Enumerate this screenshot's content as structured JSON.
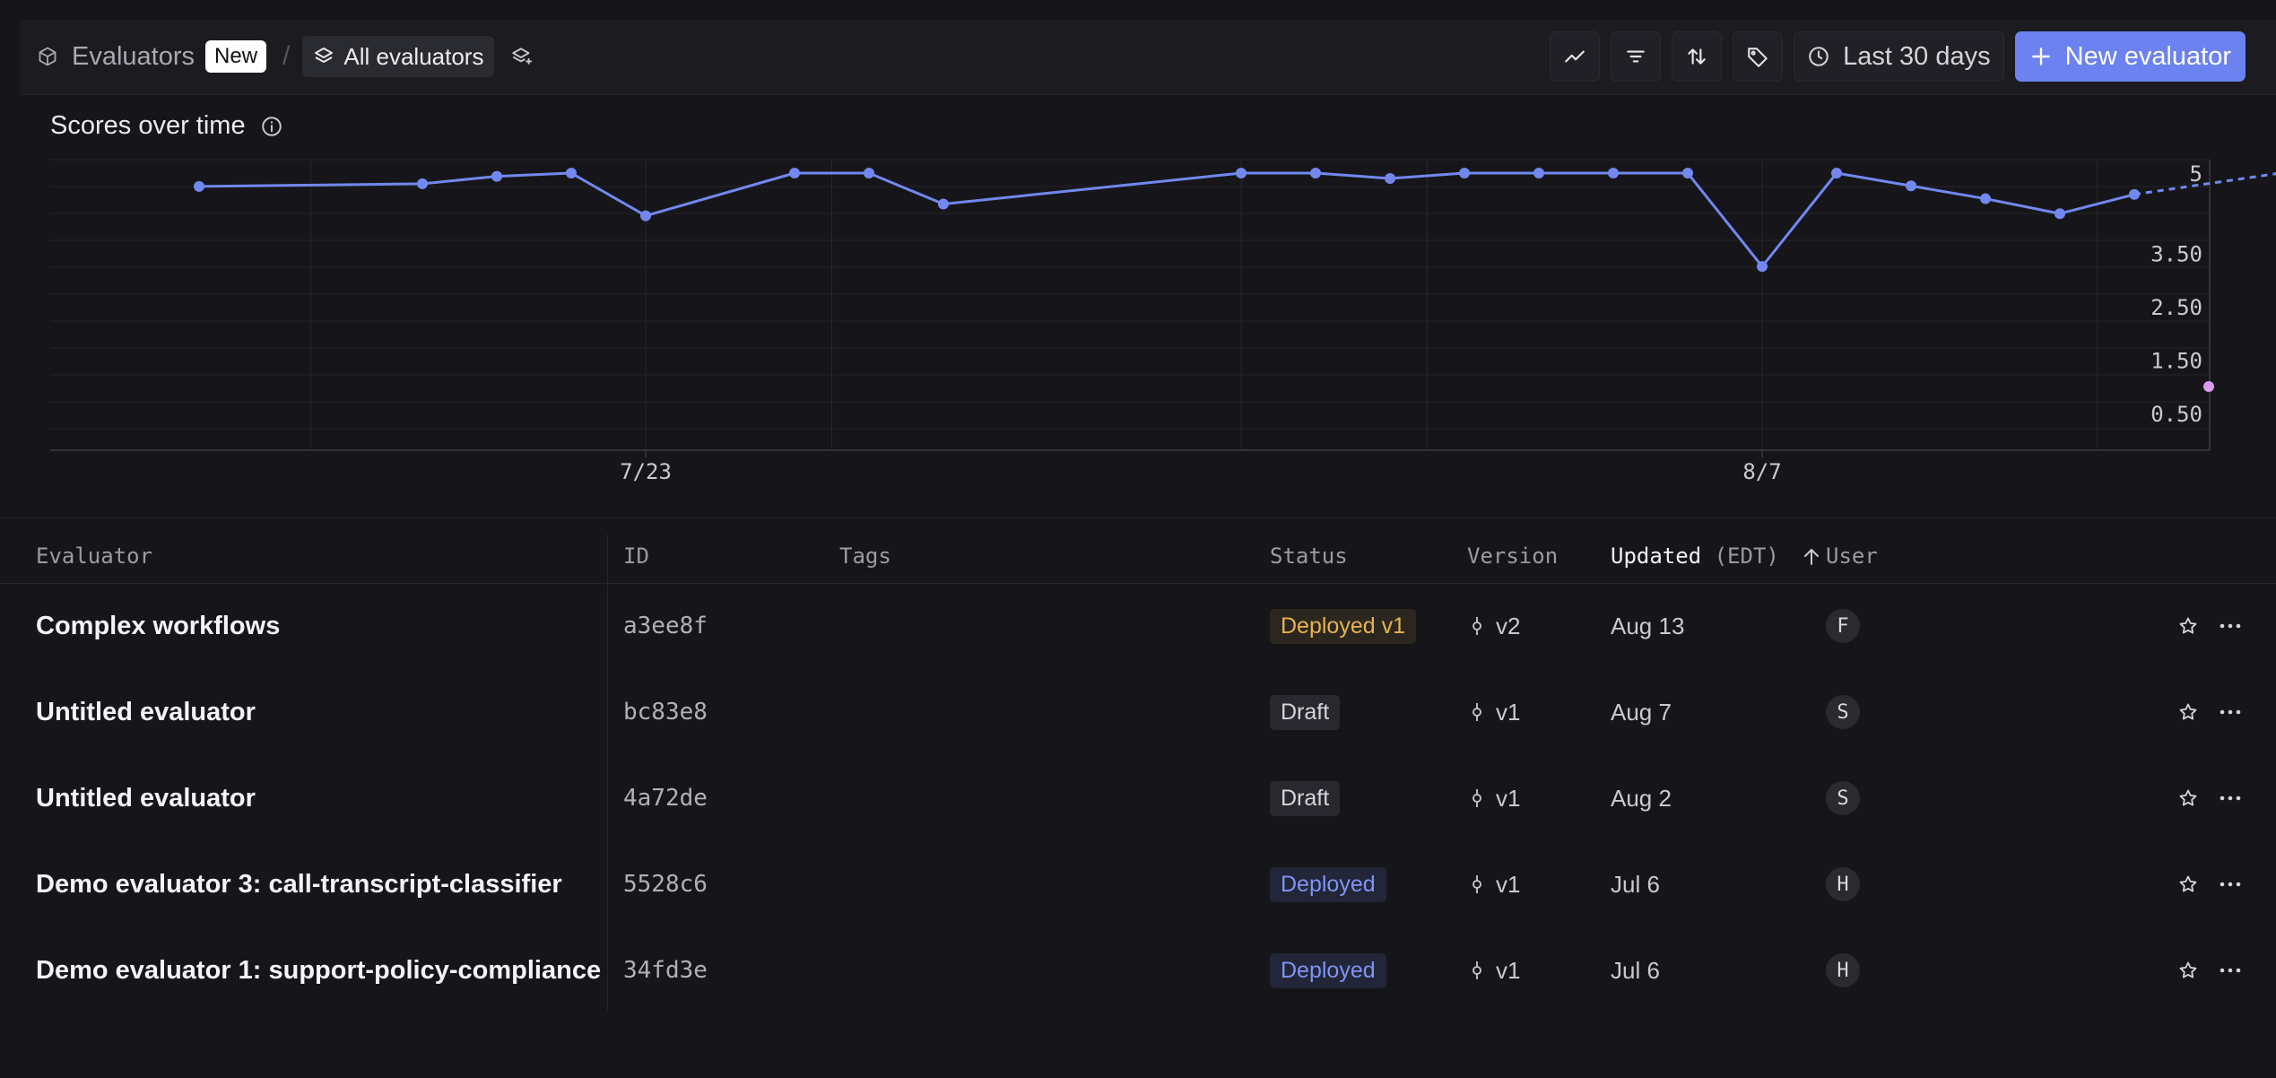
{
  "header": {
    "breadcrumb_root": "Evaluators",
    "new_badge": "New",
    "separator": "/",
    "view_label": "All evaluators",
    "date_range": "Last 30 days",
    "new_evaluator": "New evaluator"
  },
  "icons": {
    "root": "cube-icon",
    "view": "layers-icon",
    "view_edit": "layers-plus-icon",
    "toolbar": [
      "line-chart-icon",
      "filter-icon",
      "sort-icon",
      "tag-icon"
    ],
    "date": "clock-icon",
    "add": "plus-icon",
    "row_actions": [
      "star-icon",
      "more-icon"
    ]
  },
  "colors": {
    "accent": "#6b82f0",
    "series": "#7288ee",
    "outlier": "#d99af0",
    "deployed_v1": "#e8b24e",
    "deployed": "#7f93f3"
  },
  "chart_title": "Scores over time",
  "chart_data": {
    "type": "line",
    "title": "Scores over time",
    "x_tick_labels": [
      "7/23",
      "8/7"
    ],
    "y_tick_labels": [
      "5",
      "3.50",
      "2.50",
      "1.50",
      "0.50"
    ],
    "ylim": [
      0,
      5
    ],
    "grid": true,
    "series": [
      {
        "values": [
          4.75,
          4.8,
          4.94,
          5.0,
          4.2,
          5.0,
          5.0,
          4.42,
          5.0,
          5.0,
          4.9,
          5.0,
          5.0,
          5.0,
          5.0,
          3.25,
          5.0,
          4.76,
          4.52,
          4.24,
          4.6
        ],
        "x_index": [
          1,
          4,
          5,
          6,
          7,
          9,
          10,
          11,
          15,
          16,
          17,
          18,
          19,
          20,
          21,
          22,
          23,
          24,
          25,
          26,
          27
        ],
        "projection": {
          "from_index": 27,
          "to_index": 28.96,
          "from_value": 4.6,
          "to_value": 5.0
        }
      }
    ],
    "outlier": {
      "x_index": 28,
      "value": 1.0
    },
    "x_tick_index": [
      7,
      22
    ]
  },
  "table": {
    "columns": {
      "evaluator": "Evaluator",
      "id": "ID",
      "tags": "Tags",
      "status": "Status",
      "version": "Version",
      "updated": "Updated",
      "updated_tz": "(EDT)",
      "user": "User"
    },
    "rows": [
      {
        "name": "Complex workflows",
        "id": "a3ee8f",
        "status": "Deployed v1",
        "version": "v2",
        "updated": "Aug 13",
        "user": "F"
      },
      {
        "name": "Untitled evaluator",
        "id": "bc83e8",
        "status": "Draft",
        "version": "v1",
        "updated": "Aug 7",
        "user": "S"
      },
      {
        "name": "Untitled evaluator",
        "id": "4a72de",
        "status": "Draft",
        "version": "v1",
        "updated": "Aug 2",
        "user": "S"
      },
      {
        "name": "Demo evaluator 3: call-transcript-classifier",
        "id": "5528c6",
        "status": "Deployed",
        "version": "v1",
        "updated": "Jul 6",
        "user": "H"
      },
      {
        "name": "Demo evaluator 1: support-policy-compliance",
        "id": "34fd3e",
        "status": "Deployed",
        "version": "v1",
        "updated": "Jul 6",
        "user": "H"
      }
    ]
  }
}
